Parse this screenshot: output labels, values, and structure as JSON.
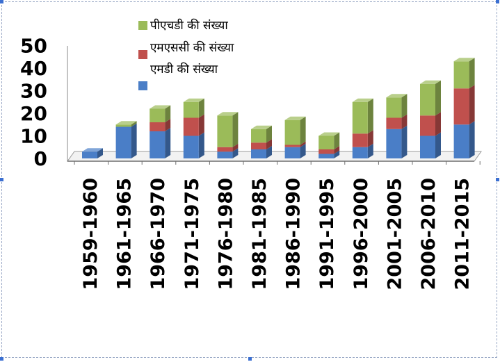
{
  "chart_data": {
    "type": "bar",
    "stacked": true,
    "three_d": true,
    "categories": [
      "1959-1960",
      "1961-1965",
      "1966-1970",
      "1971-1975",
      "1976-1980",
      "1981-1985",
      "1986-1990",
      "1991-1995",
      "1996-2000",
      "2001-2005",
      "2006-2010",
      "2011-2015"
    ],
    "series": [
      {
        "name": "एमडी की संख्या",
        "color": "#4a7ec7",
        "values": [
          3,
          14,
          12,
          10,
          3,
          4,
          5,
          2,
          5,
          13,
          10,
          15
        ]
      },
      {
        "name": "एमएससी की संख्या",
        "color": "#c0504d",
        "values": [
          0,
          0,
          4,
          8,
          2,
          3,
          1,
          2,
          6,
          5,
          9,
          16
        ]
      },
      {
        "name": "पीएचडी की संख्या",
        "color": "#9bbb59",
        "values": [
          0,
          1,
          6,
          7,
          14,
          6,
          11,
          6,
          14,
          9,
          14,
          12
        ]
      }
    ],
    "legend_order": [
      "पीएचडी  की संख्या",
      "एमएससी  की संख्या",
      "एमडी  की संख्या"
    ],
    "yticks": [
      "0",
      "10",
      "20",
      "30",
      "40",
      "50"
    ],
    "ylim": [
      0,
      50
    ],
    "grid": false,
    "legend_position": "top-center",
    "title": "",
    "xlabel": "",
    "ylabel": ""
  }
}
